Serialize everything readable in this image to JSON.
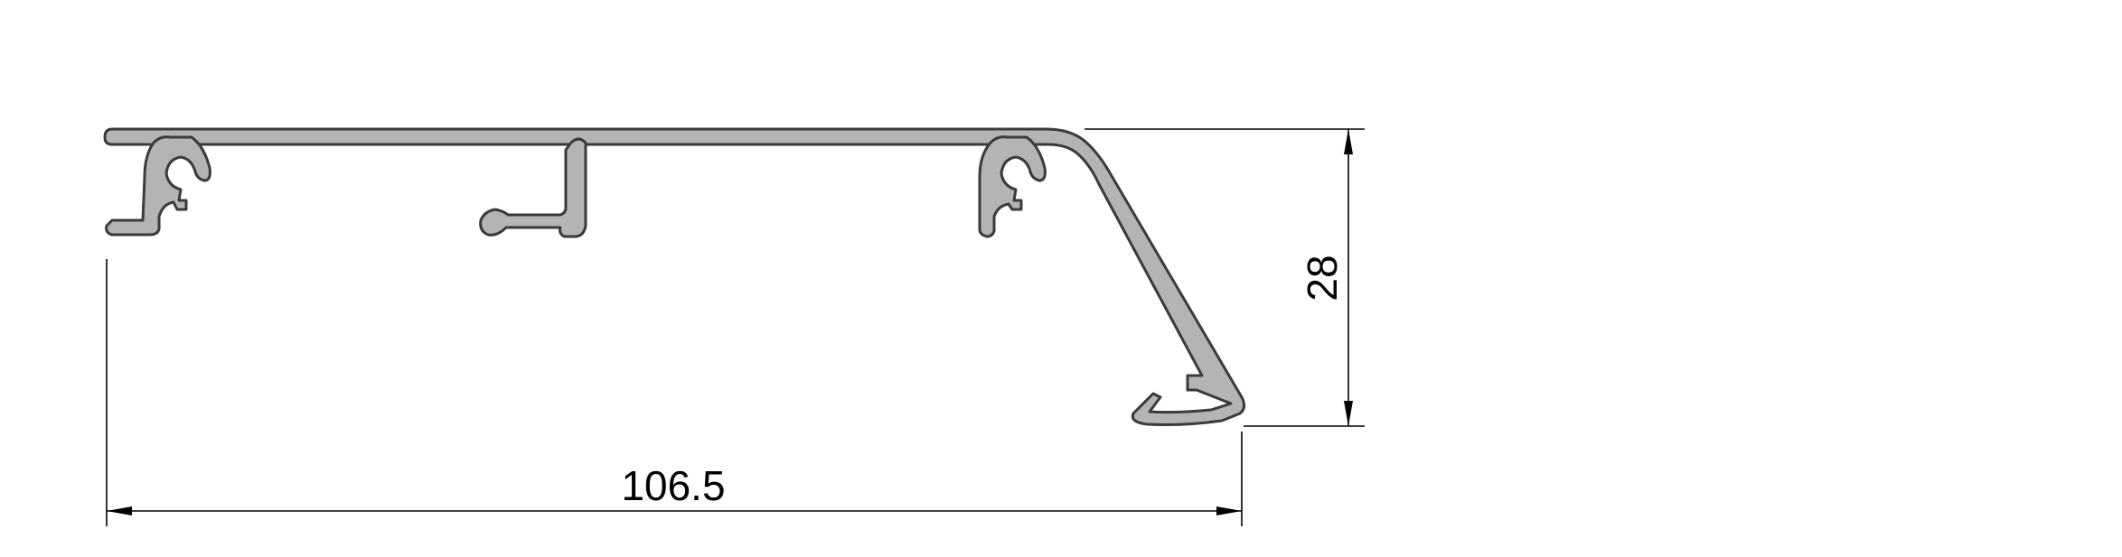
{
  "drawing": {
    "profile_fill": "#b4b4b4",
    "profile_stroke": "#3a3a3a",
    "dimension_color": "#000000",
    "width_dimension": "106.5",
    "height_dimension": "28"
  }
}
